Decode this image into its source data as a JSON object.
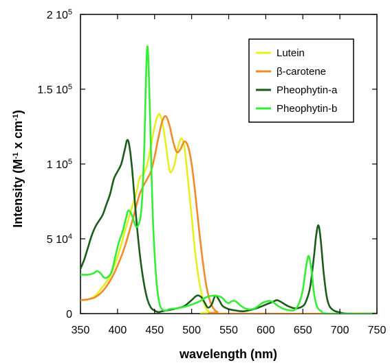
{
  "chart_data": {
    "type": "line",
    "xlabel": "wavelength (nm)",
    "ylabel": "Intensity (M-1 x cm-1)",
    "ylabel_parts": {
      "base": "Intensity (M",
      "sup1": "-1",
      "mid": " x cm",
      "sup2": "-1",
      "end": ")"
    },
    "xlim": [
      350,
      750
    ],
    "ylim": [
      0,
      200000
    ],
    "x_ticks": [
      {
        "value": 350,
        "label": "350"
      },
      {
        "value": 400,
        "label": "400"
      },
      {
        "value": 450,
        "label": "450"
      },
      {
        "value": 500,
        "label": "500"
      },
      {
        "value": 550,
        "label": "550"
      },
      {
        "value": 600,
        "label": "600"
      },
      {
        "value": 650,
        "label": "650"
      },
      {
        "value": 700,
        "label": "700"
      },
      {
        "value": 750,
        "label": "750"
      }
    ],
    "y_ticks": [
      {
        "value": 0,
        "mant": "0",
        "exp": ""
      },
      {
        "value": 50000,
        "mant": "5 10",
        "exp": "4"
      },
      {
        "value": 100000,
        "mant": "1 10",
        "exp": "5"
      },
      {
        "value": 150000,
        "mant": "1.5 10",
        "exp": "5"
      },
      {
        "value": 200000,
        "mant": "2 10",
        "exp": "5"
      }
    ],
    "grid": false,
    "legend_position": "top-right",
    "series": [
      {
        "name": "Lutein",
        "color": "#e6f01e",
        "points": [
          [
            350,
            9000
          ],
          [
            360,
            9500
          ],
          [
            370,
            12000
          ],
          [
            380,
            18000
          ],
          [
            390,
            25000
          ],
          [
            400,
            38000
          ],
          [
            410,
            55000
          ],
          [
            420,
            72000
          ],
          [
            425,
            80000
          ],
          [
            430,
            91000
          ],
          [
            435,
            93000
          ],
          [
            440,
            100000
          ],
          [
            445,
            112000
          ],
          [
            450,
            125000
          ],
          [
            455,
            133000
          ],
          [
            458,
            132000
          ],
          [
            462,
            124000
          ],
          [
            466,
            110000
          ],
          [
            470,
            96000
          ],
          [
            473,
            95000
          ],
          [
            477,
            100000
          ],
          [
            482,
            112000
          ],
          [
            486,
            117000
          ],
          [
            490,
            112000
          ],
          [
            495,
            90000
          ],
          [
            500,
            65000
          ],
          [
            505,
            40000
          ],
          [
            510,
            22000
          ],
          [
            515,
            10000
          ],
          [
            520,
            3000
          ],
          [
            525,
            1000
          ],
          [
            530,
            0
          ],
          [
            750,
            0
          ]
        ]
      },
      {
        "name": "β-carotene",
        "color": "#f28a2a",
        "points": [
          [
            350,
            9000
          ],
          [
            360,
            9500
          ],
          [
            370,
            11000
          ],
          [
            380,
            15000
          ],
          [
            390,
            22000
          ],
          [
            400,
            32000
          ],
          [
            410,
            45000
          ],
          [
            420,
            62000
          ],
          [
            430,
            80000
          ],
          [
            440,
            90000
          ],
          [
            445,
            95000
          ],
          [
            450,
            105000
          ],
          [
            455,
            117000
          ],
          [
            460,
            128000
          ],
          [
            465,
            132000
          ],
          [
            470,
            126000
          ],
          [
            475,
            115000
          ],
          [
            480,
            108000
          ],
          [
            485,
            110000
          ],
          [
            490,
            115000
          ],
          [
            495,
            112000
          ],
          [
            500,
            100000
          ],
          [
            505,
            80000
          ],
          [
            510,
            56000
          ],
          [
            515,
            35000
          ],
          [
            520,
            18000
          ],
          [
            525,
            8000
          ],
          [
            530,
            3000
          ],
          [
            535,
            1000
          ],
          [
            540,
            0
          ],
          [
            750,
            0
          ]
        ]
      },
      {
        "name": "Pheophytin-a",
        "color": "#1a5c1a",
        "points": [
          [
            350,
            30000
          ],
          [
            355,
            36000
          ],
          [
            360,
            44000
          ],
          [
            365,
            52000
          ],
          [
            370,
            58000
          ],
          [
            375,
            62000
          ],
          [
            380,
            66000
          ],
          [
            385,
            73000
          ],
          [
            390,
            80000
          ],
          [
            395,
            90000
          ],
          [
            400,
            95000
          ],
          [
            405,
            100000
          ],
          [
            410,
            110000
          ],
          [
            413,
            116000
          ],
          [
            416,
            112000
          ],
          [
            420,
            95000
          ],
          [
            425,
            65000
          ],
          [
            430,
            40000
          ],
          [
            435,
            22000
          ],
          [
            440,
            10000
          ],
          [
            445,
            4000
          ],
          [
            450,
            2000
          ],
          [
            455,
            1000
          ],
          [
            460,
            1500
          ],
          [
            470,
            2500
          ],
          [
            480,
            3500
          ],
          [
            490,
            5000
          ],
          [
            500,
            9000
          ],
          [
            507,
            12000
          ],
          [
            513,
            11000
          ],
          [
            518,
            7000
          ],
          [
            522,
            4000
          ],
          [
            527,
            6000
          ],
          [
            532,
            12000
          ],
          [
            537,
            9000
          ],
          [
            542,
            5000
          ],
          [
            550,
            3000
          ],
          [
            560,
            2000
          ],
          [
            570,
            1500
          ],
          [
            580,
            2500
          ],
          [
            590,
            4000
          ],
          [
            600,
            6000
          ],
          [
            610,
            8000
          ],
          [
            615,
            9000
          ],
          [
            620,
            8000
          ],
          [
            630,
            5000
          ],
          [
            640,
            3500
          ],
          [
            650,
            5000
          ],
          [
            655,
            9000
          ],
          [
            660,
            18000
          ],
          [
            665,
            38000
          ],
          [
            668,
            52000
          ],
          [
            671,
            59000
          ],
          [
            674,
            50000
          ],
          [
            678,
            28000
          ],
          [
            682,
            12000
          ],
          [
            686,
            5000
          ],
          [
            692,
            2000
          ],
          [
            700,
            800
          ],
          [
            710,
            0
          ],
          [
            750,
            0
          ]
        ]
      },
      {
        "name": "Pheophytin-b",
        "color": "#33ee33",
        "points": [
          [
            350,
            26000
          ],
          [
            360,
            26000
          ],
          [
            368,
            27000
          ],
          [
            372,
            28500
          ],
          [
            377,
            27000
          ],
          [
            382,
            24000
          ],
          [
            387,
            24500
          ],
          [
            392,
            28000
          ],
          [
            397,
            38000
          ],
          [
            402,
            48000
          ],
          [
            407,
            55000
          ],
          [
            412,
            65000
          ],
          [
            415,
            69000
          ],
          [
            420,
            65000
          ],
          [
            425,
            58000
          ],
          [
            430,
            62000
          ],
          [
            433,
            75000
          ],
          [
            436,
            110000
          ],
          [
            438,
            150000
          ],
          [
            440,
            178000
          ],
          [
            442,
            165000
          ],
          [
            445,
            110000
          ],
          [
            448,
            60000
          ],
          [
            452,
            25000
          ],
          [
            456,
            8000
          ],
          [
            460,
            3000
          ],
          [
            465,
            2000
          ],
          [
            470,
            3000
          ],
          [
            480,
            3500
          ],
          [
            490,
            4500
          ],
          [
            500,
            6000
          ],
          [
            510,
            8000
          ],
          [
            520,
            11000
          ],
          [
            530,
            12000
          ],
          [
            540,
            11000
          ],
          [
            546,
            8000
          ],
          [
            550,
            7000
          ],
          [
            555,
            8500
          ],
          [
            560,
            8000
          ],
          [
            567,
            5000
          ],
          [
            575,
            3000
          ],
          [
            585,
            3500
          ],
          [
            595,
            7000
          ],
          [
            600,
            8000
          ],
          [
            605,
            8500
          ],
          [
            610,
            7500
          ],
          [
            617,
            5000
          ],
          [
            625,
            3000
          ],
          [
            635,
            2000
          ],
          [
            640,
            3000
          ],
          [
            645,
            7000
          ],
          [
            650,
            16000
          ],
          [
            654,
            30000
          ],
          [
            657,
            38000
          ],
          [
            659,
            37000
          ],
          [
            662,
            28000
          ],
          [
            665,
            14000
          ],
          [
            669,
            5000
          ],
          [
            675,
            1500
          ],
          [
            685,
            0
          ],
          [
            750,
            0
          ]
        ]
      }
    ]
  }
}
